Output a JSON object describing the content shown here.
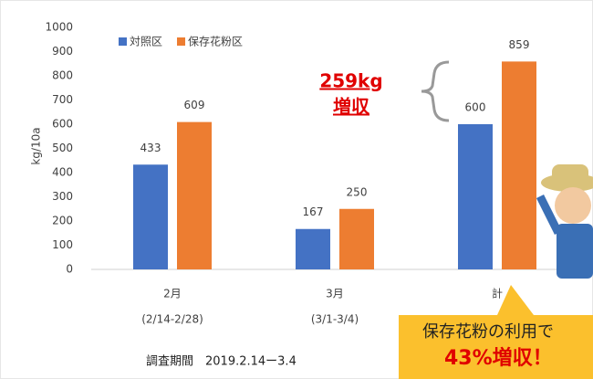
{
  "chart_data": {
    "type": "bar",
    "ylabel": "kg/10a",
    "categories": [
      "2月",
      "3月",
      "計"
    ],
    "category_notes": [
      "(2/14-2/28)",
      "(3/1-3/4)",
      null
    ],
    "series": [
      {
        "name": "対照区",
        "color": "#4472c4",
        "values": [
          433,
          167,
          600
        ]
      },
      {
        "name": "保存花粉区",
        "color": "#ed7d31",
        "values": [
          609,
          250,
          859
        ]
      }
    ],
    "ylim": [
      0,
      1000
    ],
    "yticks": [
      0,
      100,
      200,
      300,
      400,
      500,
      600,
      700,
      800,
      900,
      1000
    ],
    "grid": false,
    "annotations": [
      "259kg",
      "増収",
      "保存花粉の利用で",
      "43%増収！"
    ],
    "footnote": "調査期間　2019.2.14ー3.4"
  }
}
